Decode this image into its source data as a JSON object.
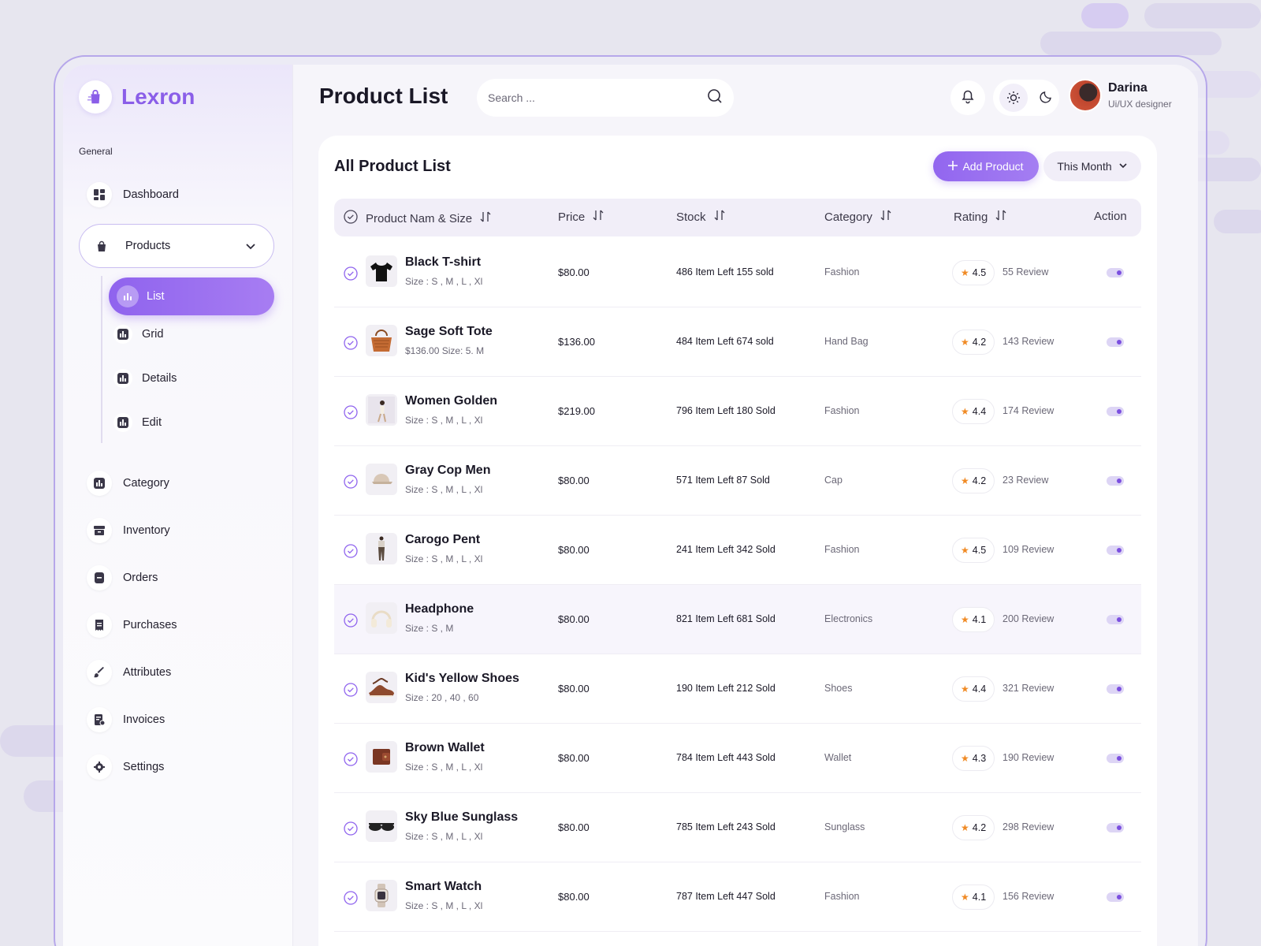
{
  "app": {
    "name": "Lexron"
  },
  "sidebar": {
    "section": "General",
    "items": [
      {
        "label": "Dashboard",
        "icon": "dashboard-icon"
      },
      {
        "label": "Products",
        "icon": "bag-icon",
        "expanded": true
      },
      {
        "label": "Category",
        "icon": "chart-icon"
      },
      {
        "label": "Inventory",
        "icon": "box-icon"
      },
      {
        "label": "Orders",
        "icon": "orders-icon"
      },
      {
        "label": "Purchases",
        "icon": "receipt-icon"
      },
      {
        "label": "Attributes",
        "icon": "brush-icon"
      },
      {
        "label": "Invoices",
        "icon": "invoice-icon"
      },
      {
        "label": "Settings",
        "icon": "gear-icon"
      }
    ],
    "sub_items": [
      {
        "label": "List",
        "active": true
      },
      {
        "label": "Grid"
      },
      {
        "label": "Details"
      },
      {
        "label": "Edit"
      }
    ]
  },
  "header": {
    "title": "Product List",
    "search_placeholder": "Search ...",
    "user": {
      "name": "Darina",
      "role": "Ui/UX designer"
    }
  },
  "card": {
    "title": "All Product List",
    "add_label": "Add Product",
    "period_label": "This Month"
  },
  "table": {
    "columns": [
      "Product Nam & Size",
      "Price",
      "Stock",
      "Category",
      "Rating",
      "Action"
    ],
    "rows": [
      {
        "name": "Black T-shirt",
        "size": "Size : S , M , L , Xl",
        "price": "$80.00",
        "stock": "486 Item Left 155 sold",
        "category": "Fashion",
        "rating": "4.5",
        "reviews": "55 Review",
        "thumb": "tshirt"
      },
      {
        "name": "Sage Soft Tote",
        "size": "$136.00 Size: 5. M",
        "price": "$136.00",
        "stock": "484 Item Left 674 sold",
        "category": "Hand Bag",
        "rating": "4.2",
        "reviews": "143 Review",
        "thumb": "bag"
      },
      {
        "name": "Women Golden",
        "size": "Size : S , M , L , Xl",
        "price": "$219.00",
        "stock": "796 Item Left 180 Sold",
        "category": "Fashion",
        "rating": "4.4",
        "reviews": "174 Review",
        "thumb": "woman"
      },
      {
        "name": "Gray Cop Men",
        "size": "Size : S , M , L , Xl",
        "price": "$80.00",
        "stock": "571 Item Left 87 Sold",
        "category": "Cap",
        "rating": "4.2",
        "reviews": "23 Review",
        "thumb": "cap"
      },
      {
        "name": "Carogo Pent",
        "size": "Size : S , M , L , Xl",
        "price": "$80.00",
        "stock": "241 Item Left 342 Sold",
        "category": "Fashion",
        "rating": "4.5",
        "reviews": "109 Review",
        "thumb": "pants"
      },
      {
        "name": "Headphone",
        "size": "Size : S , M",
        "price": "$80.00",
        "stock": "821 Item Left 681 Sold",
        "category": "Electronics",
        "rating": "4.1",
        "reviews": "200 Review",
        "thumb": "headphone"
      },
      {
        "name": "Kid's Yellow Shoes",
        "size": "Size : 20 , 40 , 60",
        "price": "$80.00",
        "stock": "190 Item Left 212 Sold",
        "category": "Shoes",
        "rating": "4.4",
        "reviews": "321 Review",
        "thumb": "shoes"
      },
      {
        "name": "Brown Wallet",
        "size": "Size : S , M , L , Xl",
        "price": "$80.00",
        "stock": "784 Item Left  443 Sold",
        "category": "Wallet",
        "rating": "4.3",
        "reviews": "190 Review",
        "thumb": "wallet"
      },
      {
        "name": "Sky Blue Sunglass",
        "size": "Size : S , M , L , Xl",
        "price": "$80.00",
        "stock": "785 Item Left  243 Sold",
        "category": "Sunglass",
        "rating": "4.2",
        "reviews": "298 Review",
        "thumb": "sunglass"
      },
      {
        "name": "Smart Watch",
        "size": "Size : S , M , L , Xl",
        "price": "$80.00",
        "stock": "787 Item Left  447 Sold",
        "category": "Fashion",
        "rating": "4.1",
        "reviews": "156 Review",
        "thumb": "watch"
      }
    ]
  },
  "colors": {
    "accent": "#8f63ee",
    "star": "#f08a24"
  }
}
